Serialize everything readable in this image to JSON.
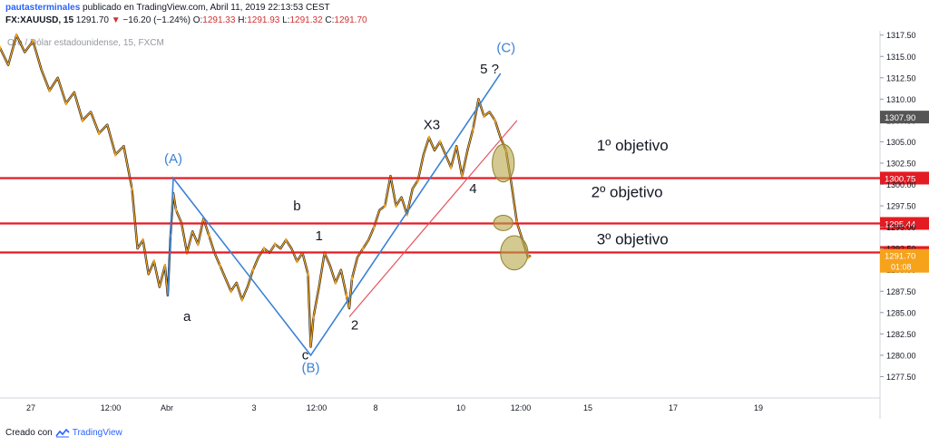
{
  "header": {
    "publisher": "pautasterminales",
    "published_text": "publicado en TradingView.com, Abril 11, 2019 22:13:53 CEST",
    "symbol": "FX:XAUUSD, 15",
    "last": "1291.70",
    "change_icon": "triangle-down-icon",
    "change": "−16.20 (−1.24%)",
    "o_label": "O:",
    "o_val": "1291.33",
    "h_label": "H:",
    "h_val": "1291.93",
    "l_label": "L:",
    "l_val": "1291.32",
    "c_label": "C:",
    "c_val": "1291.70"
  },
  "watermark": "Oro / Dólar estadounidense, 15, FXCM",
  "footer": {
    "created_text": "Creado con",
    "brand": "TradingView",
    "logo_icon": "tradingview-logo-icon"
  },
  "colors": {
    "candle": "#f5a623",
    "candle_dark": "#1e1e1e",
    "level": "#e31b23",
    "wave": "#3b82d6",
    "trend": "#e8505b",
    "circle_fill": "#b5a548",
    "price_tag": "#f7a21b",
    "gray_tag": "#555555",
    "red_tag": "#e31b23"
  },
  "chart_data": {
    "type": "line",
    "instrument": "FX:XAUUSD",
    "interval": "15",
    "ylim": [
      1275,
      1318
    ],
    "y_ticks": [
      1277.5,
      1280.0,
      1282.5,
      1285.0,
      1287.5,
      1290.0,
      1292.5,
      1295.0,
      1297.5,
      1300.0,
      1302.5,
      1305.0,
      1307.5,
      1310.0,
      1312.5,
      1315.0,
      1317.5
    ],
    "x_labels": [
      "27",
      "12:00",
      "Abr",
      "3",
      "12:00",
      "8",
      "10",
      "12:00",
      "15",
      "17",
      "19"
    ],
    "price_series": [
      [
        0,
        1316.0
      ],
      [
        3,
        1314.0
      ],
      [
        6,
        1317.5
      ],
      [
        9,
        1315.5
      ],
      [
        12,
        1316.8
      ],
      [
        15,
        1313.5
      ],
      [
        18,
        1311.0
      ],
      [
        21,
        1312.5
      ],
      [
        24,
        1309.5
      ],
      [
        27,
        1310.8
      ],
      [
        30,
        1307.5
      ],
      [
        33,
        1308.5
      ],
      [
        36,
        1306.0
      ],
      [
        39,
        1307.0
      ],
      [
        42,
        1303.5
      ],
      [
        45,
        1304.5
      ],
      [
        48,
        1299.5
      ],
      [
        50,
        1292.5
      ],
      [
        52,
        1293.5
      ],
      [
        54,
        1289.5
      ],
      [
        56,
        1291.0
      ],
      [
        58,
        1288.0
      ],
      [
        60,
        1290.5
      ],
      [
        61,
        1287.0
      ],
      [
        62,
        1294.0
      ],
      [
        63,
        1299.0
      ],
      [
        64,
        1297.0
      ],
      [
        66,
        1295.5
      ],
      [
        68,
        1292.0
      ],
      [
        70,
        1294.5
      ],
      [
        72,
        1293.0
      ],
      [
        74,
        1296.0
      ],
      [
        76,
        1294.0
      ],
      [
        78,
        1292.0
      ],
      [
        80,
        1290.5
      ],
      [
        82,
        1289.0
      ],
      [
        84,
        1287.5
      ],
      [
        86,
        1288.5
      ],
      [
        88,
        1286.5
      ],
      [
        90,
        1288.0
      ],
      [
        92,
        1290.0
      ],
      [
        94,
        1291.5
      ],
      [
        96,
        1292.5
      ],
      [
        98,
        1292.0
      ],
      [
        100,
        1293.0
      ],
      [
        102,
        1292.5
      ],
      [
        104,
        1293.5
      ],
      [
        106,
        1292.5
      ],
      [
        108,
        1291.0
      ],
      [
        110,
        1292.0
      ],
      [
        112,
        1289.5
      ],
      [
        113,
        1281.0
      ],
      [
        114,
        1284.5
      ],
      [
        116,
        1288.0
      ],
      [
        118,
        1292.0
      ],
      [
        120,
        1290.5
      ],
      [
        122,
        1288.5
      ],
      [
        124,
        1290.0
      ],
      [
        126,
        1287.0
      ],
      [
        127,
        1285.5
      ],
      [
        128,
        1289.0
      ],
      [
        130,
        1291.5
      ],
      [
        132,
        1292.5
      ],
      [
        134,
        1293.5
      ],
      [
        136,
        1295.0
      ],
      [
        138,
        1297.0
      ],
      [
        140,
        1297.5
      ],
      [
        142,
        1301.0
      ],
      [
        144,
        1297.5
      ],
      [
        146,
        1298.5
      ],
      [
        148,
        1296.5
      ],
      [
        150,
        1299.5
      ],
      [
        152,
        1300.5
      ],
      [
        154,
        1303.5
      ],
      [
        156,
        1305.5
      ],
      [
        158,
        1304.0
      ],
      [
        160,
        1305.0
      ],
      [
        162,
        1303.5
      ],
      [
        164,
        1302.0
      ],
      [
        166,
        1304.5
      ],
      [
        168,
        1301.0
      ],
      [
        170,
        1304.0
      ],
      [
        172,
        1306.5
      ],
      [
        174,
        1310.0
      ],
      [
        176,
        1308.0
      ],
      [
        178,
        1308.5
      ],
      [
        180,
        1307.5
      ],
      [
        182,
        1305.5
      ],
      [
        184,
        1304.0
      ],
      [
        186,
        1300.0
      ],
      [
        188,
        1295.5
      ],
      [
        190,
        1293.5
      ],
      [
        192,
        1291.5
      ],
      [
        193,
        1291.7
      ]
    ],
    "x_max": 320,
    "levels": [
      {
        "price": 1300.75,
        "tag": "1300.75",
        "tag_color": "#e31b23"
      },
      {
        "price": 1295.44,
        "tag": "1295.44",
        "tag_color": "#e31b23"
      },
      {
        "price": 1292.04,
        "tag": "1292.04",
        "tag_color": "#e31b23"
      }
    ],
    "price_tags": [
      {
        "price": 1307.9,
        "text": "1307.90",
        "color": "#555555"
      },
      {
        "price": 1291.7,
        "text": "1291.70",
        "color": "#f7a21b",
        "sub": "01:08"
      }
    ],
    "wave_lines": [
      [
        [
          61,
          1287.0
        ],
        [
          63,
          1300.75
        ],
        [
          113,
          1280.0
        ],
        [
          182,
          1313.0
        ]
      ]
    ],
    "trend_line": [
      [
        127,
        1284.5
      ],
      [
        188,
        1307.5
      ]
    ],
    "annotations": [
      {
        "text": "(A)",
        "at": [
          63,
          1302.5
        ],
        "color": "#3b82d6"
      },
      {
        "text": "(B)",
        "at": [
          113,
          1278.0
        ],
        "color": "#3b82d6"
      },
      {
        "text": "(C)",
        "at": [
          184,
          1315.5
        ],
        "color": "#3b82d6"
      },
      {
        "text": "a",
        "at": [
          68,
          1284.0
        ],
        "color": "#131722"
      },
      {
        "text": "b",
        "at": [
          108,
          1297.0
        ],
        "color": "#131722"
      },
      {
        "text": "c",
        "at": [
          111,
          1279.5
        ],
        "color": "#131722"
      },
      {
        "text": "1",
        "at": [
          116,
          1293.5
        ],
        "color": "#131722"
      },
      {
        "text": "2",
        "at": [
          129,
          1283.0
        ],
        "color": "#131722"
      },
      {
        "text": "X3",
        "at": [
          157,
          1306.5
        ],
        "color": "#131722"
      },
      {
        "text": "4",
        "at": [
          172,
          1299.0
        ],
        "color": "#131722"
      },
      {
        "text": "5 ?",
        "at": [
          178,
          1313.0
        ],
        "color": "#131722"
      }
    ],
    "targets": [
      {
        "text": "1º objetivo",
        "at": [
          230,
          1304.0
        ]
      },
      {
        "text": "2º objetivo",
        "at": [
          228,
          1298.5
        ]
      },
      {
        "text": "3º objetivo",
        "at": [
          230,
          1293.0
        ]
      }
    ],
    "circles": [
      {
        "at": [
          183,
          1302.5
        ],
        "rx": 4,
        "ry": 2.2
      },
      {
        "at": [
          183,
          1295.5
        ],
        "rx": 3.5,
        "ry": 0.9
      },
      {
        "at": [
          187,
          1292.0
        ],
        "rx": 5,
        "ry": 2.0
      }
    ]
  }
}
